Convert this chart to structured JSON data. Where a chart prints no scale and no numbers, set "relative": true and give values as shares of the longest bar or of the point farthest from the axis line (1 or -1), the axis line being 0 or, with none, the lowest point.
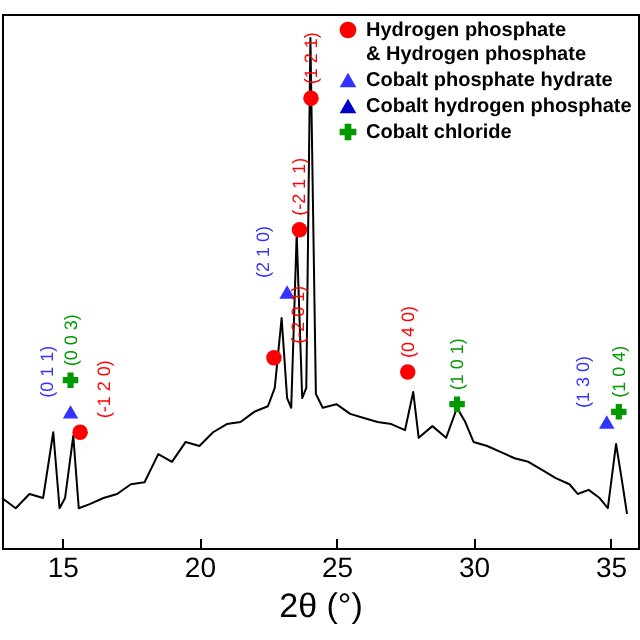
{
  "chart_data": {
    "type": "line",
    "xlabel": "2θ (°)",
    "xlim": [
      12.8,
      36
    ],
    "xticks": [
      15,
      20,
      25,
      30,
      35
    ],
    "relative": true,
    "grid": false,
    "legend": "top right",
    "series": [
      {
        "color": "#000000",
        "x": [
          12.8,
          13.3,
          13.8,
          14.3,
          14.67,
          14.9,
          15.1,
          15.4,
          15.6,
          16.0,
          16.5,
          17.0,
          17.5,
          18.0,
          18.5,
          19.0,
          19.5,
          20.0,
          20.5,
          21.0,
          21.5,
          22.0,
          22.5,
          22.75,
          23.0,
          23.2,
          23.35,
          23.55,
          23.75,
          23.9,
          24.05,
          24.25,
          24.5,
          25.0,
          25.5,
          26.0,
          26.5,
          27.0,
          27.5,
          27.8,
          28.0,
          28.5,
          29.0,
          29.4,
          29.7,
          30.0,
          30.5,
          31.0,
          31.5,
          32.0,
          32.5,
          33.0,
          33.5,
          33.8,
          34.2,
          34.6,
          34.9,
          35.2,
          35.4,
          35.6
        ],
        "values": [
          0.098,
          0.078,
          0.106,
          0.098,
          0.227,
          0.078,
          0.098,
          0.22,
          0.078,
          0.086,
          0.098,
          0.106,
          0.125,
          0.129,
          0.184,
          0.169,
          0.208,
          0.2,
          0.227,
          0.243,
          0.247,
          0.267,
          0.278,
          0.314,
          0.451,
          0.294,
          0.275,
          0.616,
          0.294,
          0.314,
          1,
          0.302,
          0.275,
          0.282,
          0.263,
          0.255,
          0.247,
          0.243,
          0.231,
          0.306,
          0.216,
          0.239,
          0.216,
          0.275,
          0.247,
          0.208,
          0.2,
          0.188,
          0.176,
          0.169,
          0.153,
          0.137,
          0.125,
          0.106,
          0.114,
          0.098,
          0.078,
          0.204,
          0.137,
          0.067
        ]
      },
      {
        "name": "Hydrogen phosphate & Hydrogen phosphate",
        "type": "scatter",
        "marker": "circle",
        "color": "#ff0000",
        "x": [
          15.65,
          22.72,
          23.65,
          24.07,
          27.6
        ],
        "values": [
          0.227,
          0.373,
          0.624,
          0.882,
          0.345
        ]
      },
      {
        "name": "Cobalt phosphate hydrate",
        "type": "scatter",
        "marker": "triangle",
        "color": "#3333ff",
        "x": [
          15.3,
          23.2,
          34.86
        ],
        "values": [
          0.267,
          0.502,
          0.247
        ]
      },
      {
        "name": "Cobalt hydrogen phosphate",
        "type": "scatter",
        "marker": "triangle",
        "color": "#0000cc"
      },
      {
        "name": "Cobalt chloride",
        "type": "scatter",
        "marker": "cross",
        "color": "#009900",
        "x": [
          15.3,
          29.4,
          35.3
        ],
        "values": [
          0.329,
          0.282,
          0.267
        ]
      }
    ],
    "annotations": [
      {
        "text": "(0 1 1)",
        "x": 15.3,
        "y": 0.267
      },
      {
        "text": "(0 0 3)",
        "x": 15.3,
        "y": 0.329
      },
      {
        "text": "(-1 2 0)",
        "x": 15.65,
        "y": 0.227
      },
      {
        "text": "(-2 0 1)",
        "x": 22.72,
        "y": 0.373
      },
      {
        "text": "(2 1 0)",
        "x": 23.2,
        "y": 0.502
      },
      {
        "text": "(-2 1 1)",
        "x": 23.65,
        "y": 0.624
      },
      {
        "text": "(1 2 1)",
        "x": 24.07,
        "y": 0.882
      },
      {
        "text": "(0 4 0)",
        "x": 27.6,
        "y": 0.345
      },
      {
        "text": "(1 0 1)",
        "x": 29.4,
        "y": 0.282
      },
      {
        "text": "(1 3 0)",
        "x": 34.86,
        "y": 0.247
      },
      {
        "text": "(1 0 4)",
        "x": 35.3,
        "y": 0.267
      }
    ]
  }
}
